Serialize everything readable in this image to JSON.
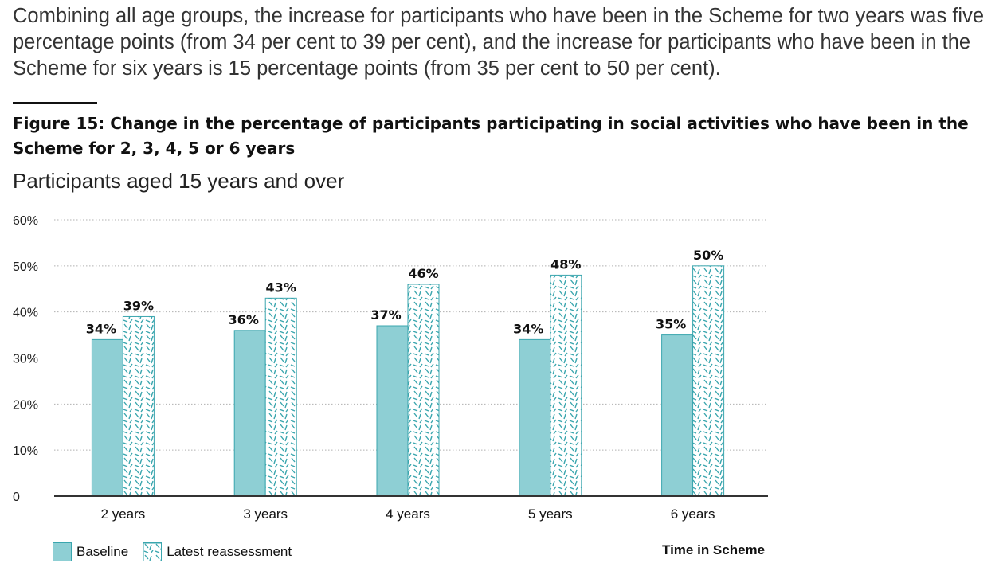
{
  "intro_text": "Combining all age groups, the increase for participants who have been in the Scheme for two years was five percentage points (from 34 per cent to 39 per cent), and the increase for participants who have been in the Scheme for six years is 15 percentage points (from 35 per cent to 50 per cent).",
  "colors": {
    "baseline_fill": "#8ecfd4",
    "latest_pattern": "#3aa6ae",
    "grid": "#b0b0b0",
    "axis": "#333333"
  },
  "chart_data": {
    "type": "bar",
    "title": "Figure 15: Change in the percentage of participants participating in social activities who have been in the Scheme for 2, 3, 4, 5 or 6 years",
    "subtitle": "Participants aged 15 years and over",
    "categories": [
      "2 years",
      "3 years",
      "4 years",
      "5 years",
      "6 years"
    ],
    "series": [
      {
        "name": "Baseline",
        "values": [
          34,
          36,
          37,
          34,
          35
        ],
        "labels": [
          "34%",
          "36%",
          "37%",
          "34%",
          "35%"
        ]
      },
      {
        "name": "Latest reassessment",
        "values": [
          39,
          43,
          46,
          48,
          50
        ],
        "labels": [
          "39%",
          "43%",
          "46%",
          "48%",
          "50%"
        ]
      }
    ],
    "ylim": [
      0,
      60
    ],
    "yticks": [
      0,
      10,
      20,
      30,
      40,
      50,
      60
    ],
    "ytick_labels": [
      "0",
      "10%",
      "20%",
      "30%",
      "40%",
      "50%",
      "60%"
    ],
    "xlabel": "Time in Scheme",
    "ylabel": "",
    "grid": true,
    "legend_position": "bottom-left"
  }
}
